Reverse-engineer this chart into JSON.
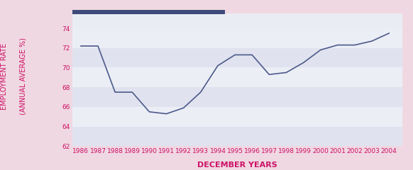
{
  "years": [
    1986,
    1987,
    1988,
    1989,
    1990,
    1991,
    1992,
    1993,
    1994,
    1995,
    1996,
    1997,
    1998,
    1999,
    2000,
    2001,
    2002,
    2003,
    2004
  ],
  "values": [
    72.2,
    72.2,
    67.5,
    67.5,
    65.5,
    65.3,
    65.9,
    67.5,
    70.2,
    71.3,
    71.3,
    69.3,
    69.5,
    70.5,
    71.8,
    72.3,
    72.3,
    72.7,
    73.5
  ],
  "line_color": "#4d5a8a",
  "bg_color": "#f0d8e2",
  "plot_bg_color": "#eaecf4",
  "stripe_colors": [
    "#e0e3ef",
    "#eceef6"
  ],
  "xlabel": "DECEMBER YEARS",
  "ylabel_line1": "EMPLOYMENT RATE",
  "ylabel_line2": "(ANNUAL AVERAGE %)",
  "xlabel_color": "#cc1166",
  "ylabel_color": "#cc1166",
  "tick_color": "#cc1166",
  "ylim": [
    62,
    75.5
  ],
  "yticks": [
    62,
    64,
    66,
    68,
    70,
    72,
    74
  ],
  "top_bar_color": "#3d4a7a",
  "xlabel_fontsize": 8,
  "ylabel_fontsize": 7,
  "tick_fontsize": 6.5
}
